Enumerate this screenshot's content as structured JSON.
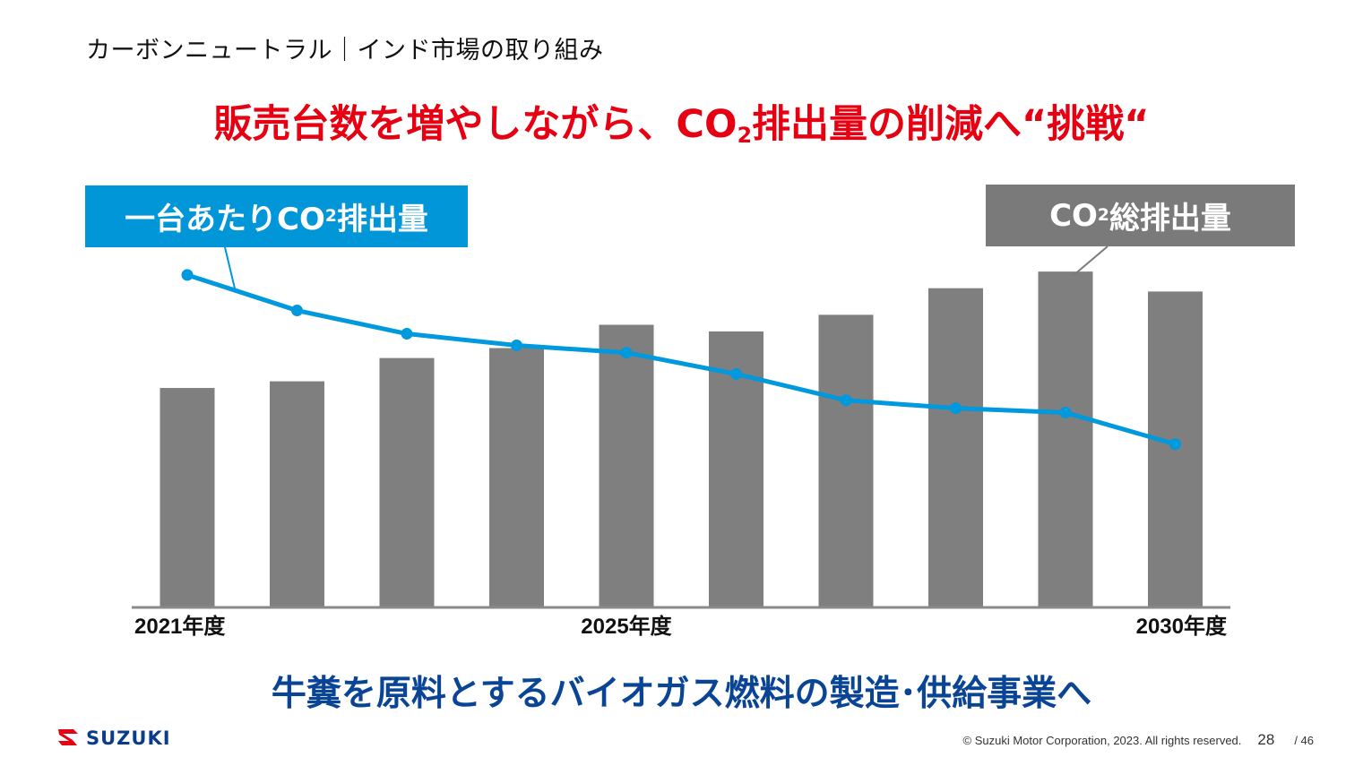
{
  "section_title": "カーボンニュートラル｜インド市場の取り組み",
  "headline": {
    "before": "販売台数を増やしながら、CO",
    "subscript": "2",
    "after": "排出量の削減へ“挑戦“"
  },
  "labels": {
    "intensity": {
      "before": "一台あたりCO",
      "subscript": "2",
      "after": "排出量"
    },
    "total": {
      "before": "CO",
      "subscript": "2",
      "after": "総排出量"
    }
  },
  "chart_data": {
    "type": "bar",
    "categories": [
      "2021年度",
      "",
      "",
      "",
      "2025年度",
      "",
      "",
      "",
      "",
      "2030年度"
    ],
    "series": [
      {
        "name": "CO2総排出量",
        "type": "bar",
        "color": "#7f7f7f",
        "values": [
          66,
          68,
          75,
          78,
          85,
          83,
          88,
          96,
          101,
          95
        ]
      },
      {
        "name": "一台あたりCO2排出量",
        "type": "line",
        "color": "#0099dd",
        "values": [
          100,
          89.3,
          82.3,
          78.8,
          76.6,
          70.2,
          62.3,
          59.9,
          58.6,
          49.1
        ]
      }
    ],
    "ylim": [
      0,
      104
    ],
    "grid": false,
    "legend": "callout labels"
  },
  "bottom_message": "牛糞を原料とするバイオガス燃料の製造･供給事業へ",
  "footer": {
    "logo_text": "SUZUKI",
    "copyright": "© Suzuki Motor Corporation, 2023. All rights reserved.",
    "page": "28",
    "total": "/ 46"
  },
  "colors": {
    "headline": "#e60012",
    "bottom_message": "#0a4595",
    "line": "#0099dd",
    "bar": "#7f7f7f",
    "logo": "#e60012"
  }
}
